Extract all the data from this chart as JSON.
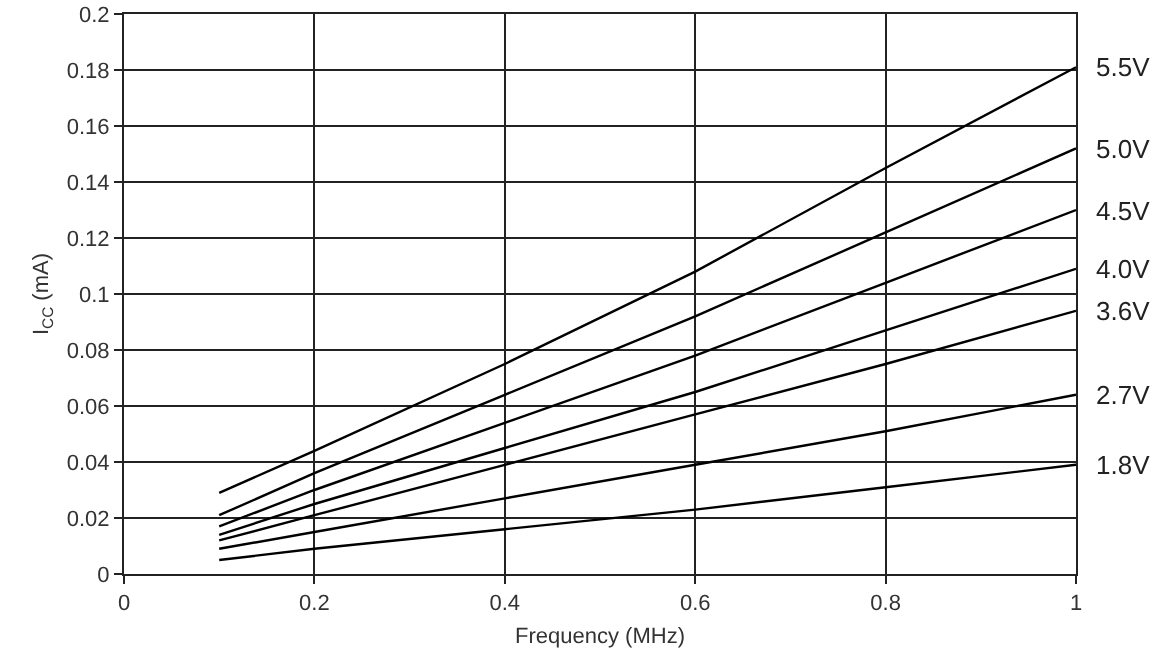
{
  "chart_data": {
    "type": "line",
    "xlabel": "Frequency (MHz)",
    "ylabel": "I$_{CC}$ (mA)",
    "x": [
      0.1,
      0.2,
      0.4,
      0.6,
      0.8,
      1
    ],
    "series": [
      {
        "name": "5.5V",
        "color": "#000000",
        "values": [
          0.029,
          0.044,
          0.075,
          0.108,
          0.145,
          0.181
        ]
      },
      {
        "name": "5.0V",
        "color": "#000000",
        "values": [
          0.021,
          0.036,
          0.064,
          0.092,
          0.122,
          0.152
        ]
      },
      {
        "name": "4.5V",
        "color": "#000000",
        "values": [
          0.017,
          0.03,
          0.054,
          0.078,
          0.104,
          0.13
        ]
      },
      {
        "name": "4.0V",
        "color": "#000000",
        "values": [
          0.014,
          0.025,
          0.045,
          0.065,
          0.087,
          0.109
        ]
      },
      {
        "name": "3.6V",
        "color": "#000000",
        "values": [
          0.012,
          0.021,
          0.039,
          0.057,
          0.075,
          0.094
        ]
      },
      {
        "name": "2.7V",
        "color": "#000000",
        "values": [
          0.009,
          0.015,
          0.027,
          0.039,
          0.051,
          0.064
        ]
      },
      {
        "name": "1.8V",
        "color": "#000000",
        "values": [
          0.005,
          0.009,
          0.016,
          0.023,
          0.031,
          0.039
        ]
      }
    ],
    "xlim": [
      0,
      1
    ],
    "xticks": [
      0,
      0.2,
      0.4,
      0.6,
      0.8,
      1
    ],
    "ylim": [
      0,
      0.2
    ],
    "yticks": [
      0,
      0.02,
      0.04,
      0.06,
      0.08,
      0.1,
      0.12,
      0.14,
      0.16,
      0.18,
      0.2
    ],
    "grid": true,
    "legend": false,
    "marker": "none",
    "line_style": "solid"
  }
}
